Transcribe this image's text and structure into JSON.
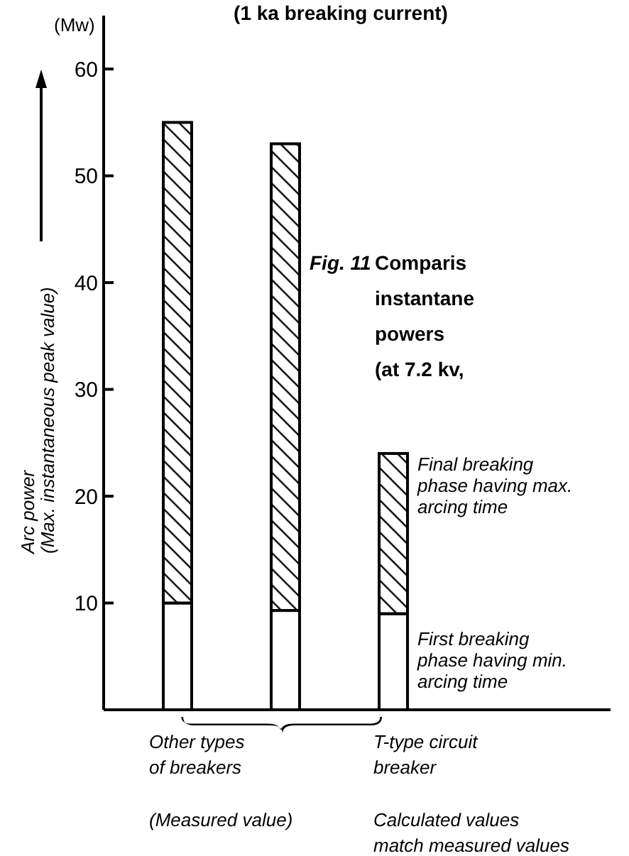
{
  "chart_data": {
    "type": "bar",
    "title": "(1 ka breaking current)",
    "ylabel": "Arc power\n(Max. instantaneous peak value)",
    "stacked": true,
    "categories": [
      null,
      null,
      null
    ],
    "series": [
      {
        "name": "First breaking phase having min. arcing time",
        "color": "#ffffff",
        "values": [
          10,
          9.3,
          9
        ]
      },
      {
        "name": "Final breaking phase having max. arcing time",
        "color": "#000000",
        "values": [
          45,
          43.7,
          15
        ]
      }
    ],
    "ylim": [
      0,
      65
    ],
    "yticks": [
      10,
      20,
      30,
      40,
      50,
      60
    ],
    "grid": false,
    "annotations": [
      "(Mw)",
      "Fig. 11",
      "Comparis\ninstantane\npowers\n(at 7.2 kv,",
      "Other types\nof breakers",
      "(Measured value)",
      "T-type circuit\nbreaker",
      "Calculated values\nmatch measured values"
    ]
  }
}
